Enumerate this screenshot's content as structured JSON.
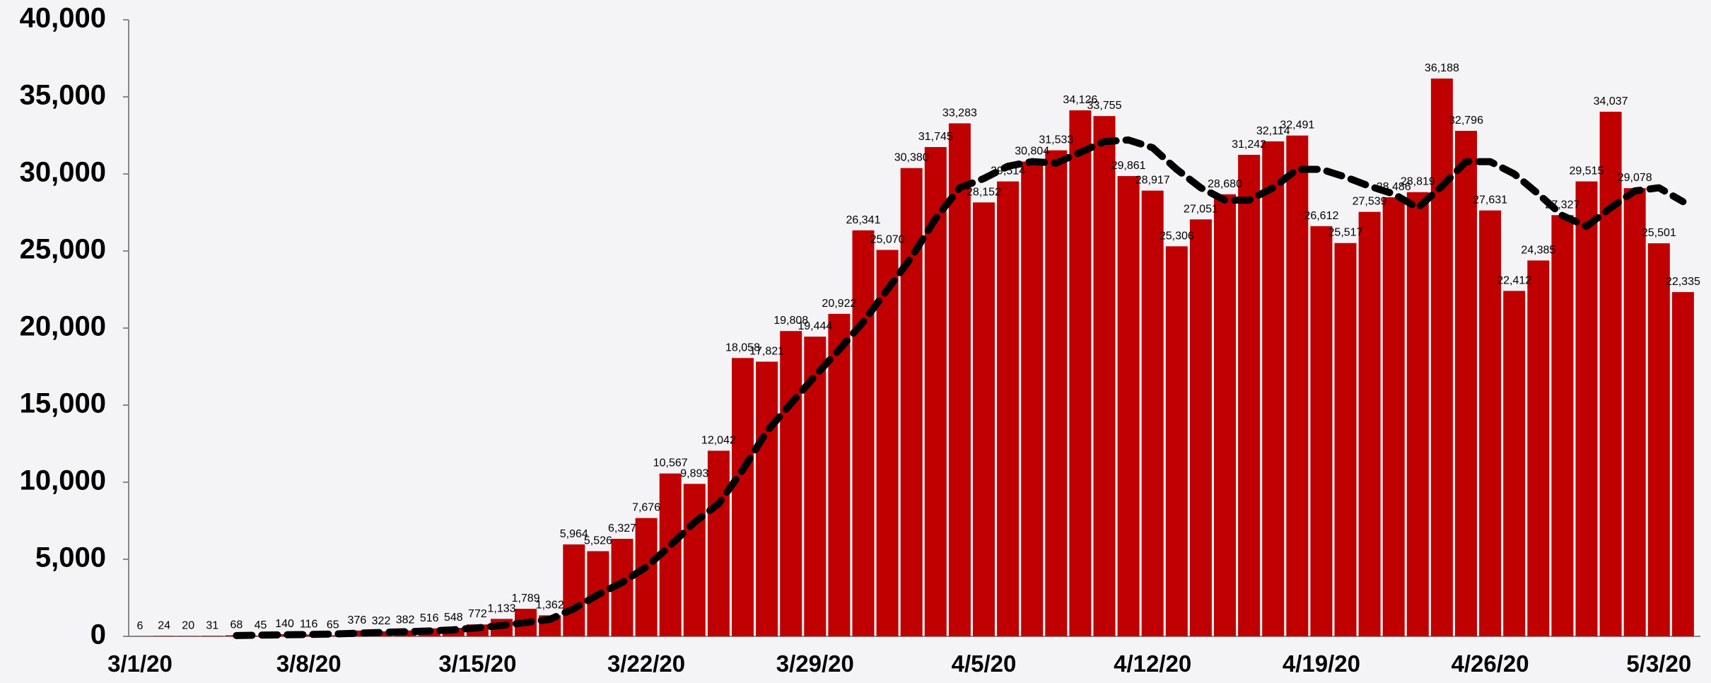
{
  "chart_data": {
    "type": "bar",
    "categories": [
      "3/1/20",
      null,
      null,
      null,
      null,
      null,
      null,
      "3/8/20",
      null,
      null,
      null,
      null,
      null,
      null,
      "3/15/20",
      null,
      null,
      null,
      null,
      null,
      null,
      "3/22/20",
      null,
      null,
      null,
      null,
      null,
      null,
      "3/29/20",
      null,
      null,
      null,
      null,
      null,
      null,
      "4/5/20",
      null,
      null,
      null,
      null,
      null,
      null,
      "4/12/20",
      null,
      null,
      null,
      null,
      null,
      null,
      "4/19/20",
      null,
      null,
      null,
      null,
      null,
      null,
      "4/26/20",
      null,
      null,
      null,
      null,
      null,
      null,
      "5/3/20",
      null
    ],
    "series": [
      {
        "type": "bar",
        "color": "#c00000",
        "values": [
          6,
          24,
          20,
          31,
          68,
          45,
          140,
          116,
          65,
          376,
          322,
          382,
          516,
          548,
          772,
          1133,
          1789,
          1362,
          5964,
          5526,
          6327,
          7676,
          10567,
          9893,
          12042,
          18058,
          17821,
          19808,
          19444,
          20922,
          26341,
          25070,
          30380,
          31745,
          33283,
          28152,
          29514,
          30804,
          31533,
          34126,
          33755,
          29861,
          28917,
          25306,
          27051,
          28680,
          31242,
          32114,
          32491,
          26612,
          25517,
          27539,
          28486,
          28819,
          36188,
          32796,
          27631,
          22412,
          24385,
          27327,
          29515,
          34037,
          29078,
          25501,
          22335
        ],
        "value_labels": [
          "6",
          "24",
          "20",
          "31",
          "68",
          "45",
          "140",
          "116",
          "65",
          "376",
          "322",
          "382",
          "516",
          "548",
          "772",
          "1,133",
          "1,789",
          "1,362",
          "5,964",
          "5,526",
          "6,327",
          "7,676",
          "10,567",
          "9,893",
          "12,042",
          "18,058",
          "17,821",
          "19,808",
          "19,444",
          "20,922",
          "26,341",
          "25,070",
          "30,380",
          "31,745",
          "33,283",
          "28,152",
          "29,514",
          "30,804",
          "31,533",
          "34,126",
          "33,755",
          "29,861",
          "28,917",
          "25,306",
          "27,051",
          "28,680",
          "31,242",
          "32,114",
          "32,491",
          "26,612",
          "25,517",
          "27,539",
          "28,486",
          "28,819",
          "36,188",
          "32,796",
          "27,631",
          "22,412",
          "24,385",
          "27,327",
          "29,515",
          "34,037",
          "29,078",
          "25,501",
          "22,335"
        ]
      },
      {
        "type": "line",
        "color": "#000000",
        "values": [
          null,
          null,
          null,
          null,
          50,
          80,
          100,
          120,
          150,
          200,
          250,
          300,
          350,
          420,
          550,
          700,
          900,
          1100,
          1800,
          2700,
          3500,
          4500,
          5900,
          7400,
          8600,
          10800,
          13300,
          15100,
          16900,
          18600,
          20400,
          22500,
          24600,
          27100,
          29100,
          29700,
          30500,
          30800,
          30700,
          31400,
          32100,
          32200,
          31700,
          30300,
          29100,
          28300,
          28300,
          29100,
          30300,
          30300,
          29800,
          29200,
          28700,
          27800,
          29200,
          30800,
          30800,
          30000,
          28700,
          27300,
          26600,
          27800,
          28900,
          29100,
          28200
        ]
      }
    ],
    "ylim": [
      0,
      40000
    ],
    "yticks": [
      0,
      {
        "value": 5000,
        "label": "5,000"
      },
      {
        "value": 10000,
        "label": "10,000"
      },
      {
        "value": 15000,
        "label": "15,000"
      },
      {
        "value": 20000,
        "label": "20,000"
      },
      {
        "value": 25000,
        "label": "25,000"
      },
      {
        "value": 30000,
        "label": "30,000"
      },
      {
        "value": 35000,
        "label": "35,000"
      },
      {
        "value": 40000,
        "label": "40,000"
      }
    ]
  }
}
